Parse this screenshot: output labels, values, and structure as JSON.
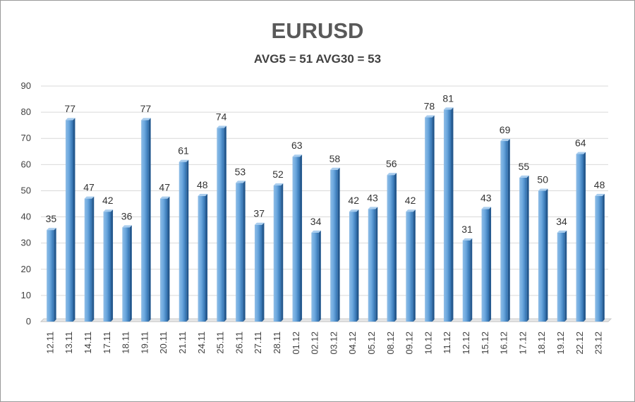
{
  "chart_data": {
    "type": "bar",
    "title": "EURUSD",
    "subtitle": "AVG5 = 51 AVG30 = 53",
    "categories": [
      "12.11",
      "13.11",
      "14.11",
      "17.11",
      "18.11",
      "19.11",
      "20.11",
      "21.11",
      "24.11",
      "25.11",
      "26.11",
      "27.11",
      "28.11",
      "01.12",
      "02.12",
      "03.12",
      "04.12",
      "05.12",
      "08.12",
      "09.12",
      "10.12",
      "11.12",
      "12.12",
      "15.12",
      "16.12",
      "17.12",
      "18.12",
      "19.12",
      "22.12",
      "23.12"
    ],
    "values": [
      35,
      77,
      47,
      42,
      36,
      77,
      47,
      61,
      48,
      74,
      53,
      37,
      52,
      63,
      34,
      58,
      42,
      43,
      56,
      42,
      78,
      81,
      31,
      43,
      69,
      55,
      50,
      34,
      64,
      48
    ],
    "ylim": [
      0,
      90
    ],
    "yticks": [
      0,
      10,
      20,
      30,
      40,
      50,
      60,
      70,
      80,
      90
    ],
    "grid": true,
    "data_labels": true,
    "bar_color": "#5b9bd5"
  }
}
